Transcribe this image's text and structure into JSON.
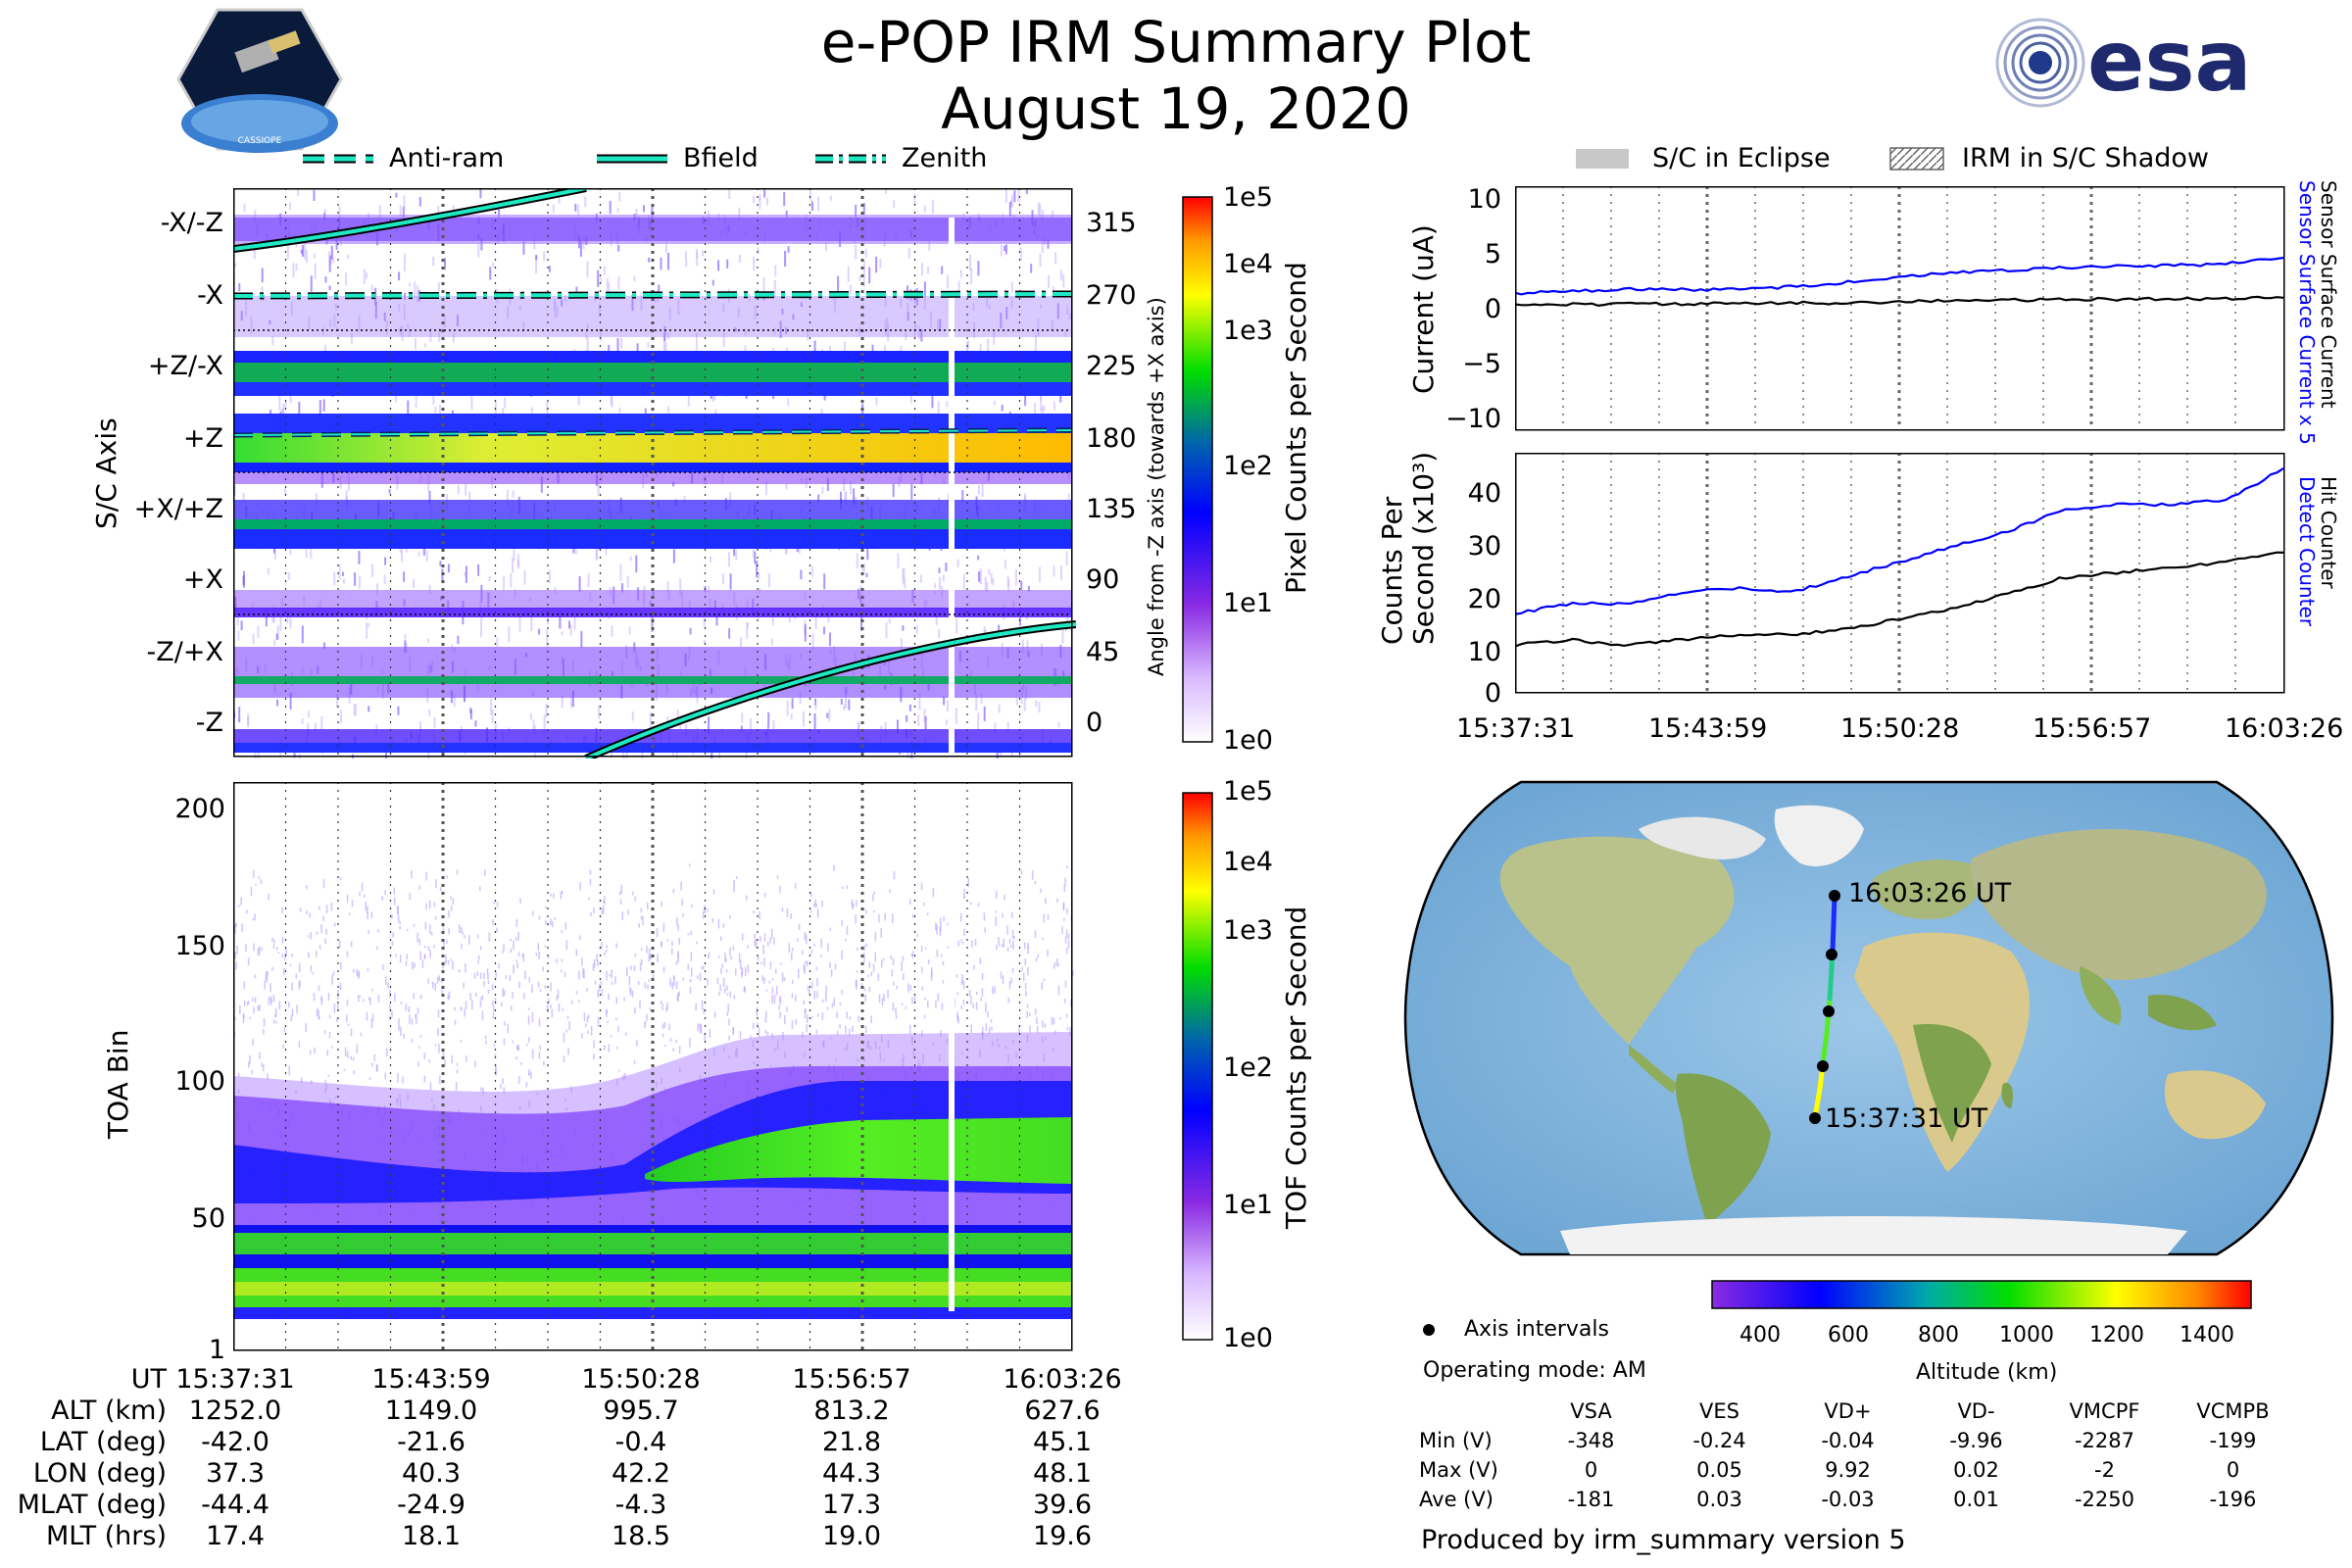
{
  "header": {
    "title": "e-POP IRM Summary Plot",
    "subtitle": "August 19, 2020",
    "esa_logo_text": "esa",
    "cassiope_logo_text": "CASSIOPE"
  },
  "legend_left": {
    "anti_ram": "Anti-ram",
    "bfield": "Bfield",
    "zenith": "Zenith"
  },
  "legend_right": {
    "eclipse": "S/C in Eclipse",
    "shadow": "IRM in S/C Shadow"
  },
  "colors": {
    "teal": "#1de9c4",
    "blue": "#0000ff",
    "grid": "#888888"
  },
  "chart_data": [
    {
      "type": "heatmap",
      "name": "pixel-counts",
      "ylabel": "S/C Axis",
      "y2label": "Angle from -Z axis (towards +X axis)",
      "axis_labels": [
        "-X/-Z",
        "-X",
        "+Z/-X",
        "+Z",
        "+X/+Z",
        "+X",
        "-Z/+X",
        "-Z"
      ],
      "angle_ticks": [
        "315",
        "270",
        "225",
        "180",
        "135",
        "90",
        "45",
        "0"
      ],
      "colorbar_label": "Pixel Counts per Second",
      "colorbar_ticks": [
        "1e5",
        "1e4",
        "1e3",
        "1e2",
        "1e1",
        "1e0"
      ]
    },
    {
      "type": "heatmap",
      "name": "toa-counts",
      "ylabel": "TOA Bin",
      "yticks": [
        "200",
        "150",
        "100",
        "50",
        "1"
      ],
      "ylim": [
        1,
        210
      ],
      "colorbar_label": "TOF Counts per Second",
      "colorbar_ticks": [
        "1e5",
        "1e4",
        "1e3",
        "1e2",
        "1e1",
        "1e0"
      ]
    },
    {
      "type": "line",
      "name": "current",
      "ylabel": "Current (uA)",
      "yticks": [
        "10",
        "5",
        "0",
        "−5",
        "−10"
      ],
      "ylim": [
        -11,
        11
      ],
      "right_label_blue": "Sensor Surface Current x 5",
      "right_label_black": "Sensor Surface Current",
      "series": [
        {
          "name": "Sensor Surface Current x 5",
          "color": "#0000ff",
          "values": [
            1.3,
            1.5,
            1.7,
            1.6,
            1.8,
            2.2,
            2.8,
            3.2,
            3.5,
            3.7,
            3.8,
            3.9,
            4.6
          ]
        },
        {
          "name": "Sensor Surface Current",
          "color": "#000000",
          "values": [
            0.25,
            0.3,
            0.35,
            0.35,
            0.4,
            0.45,
            0.55,
            0.65,
            0.7,
            0.75,
            0.8,
            0.82,
            0.95
          ]
        }
      ]
    },
    {
      "type": "line",
      "name": "counts",
      "ylabel_line1": "Counts Per",
      "ylabel_line2": "Second (x10³)",
      "yticks": [
        "40",
        "30",
        "20",
        "10",
        "0"
      ],
      "ylim": [
        0,
        46
      ],
      "right_label_blue": "Detect Counter",
      "right_label_black": "Hit Counter",
      "series": [
        {
          "name": "Detect Counter",
          "color": "#0000ff",
          "values": [
            15,
            17,
            17,
            19,
            20,
            19,
            22,
            25,
            28,
            31,
            35,
            36,
            36,
            37,
            43
          ]
        },
        {
          "name": "Hit Counter",
          "color": "#000000",
          "values": [
            9,
            10,
            9,
            10,
            11,
            11,
            12,
            14,
            16,
            19,
            22,
            23,
            24,
            25,
            27
          ]
        }
      ],
      "x_labels": [
        "15:37:31",
        "15:43:59",
        "15:50:28",
        "15:56:57",
        "16:03:26"
      ]
    }
  ],
  "ephemeris": {
    "rows": [
      {
        "label": "UT",
        "values": [
          "15:37:31",
          "15:43:59",
          "15:50:28",
          "15:56:57",
          "16:03:26"
        ]
      },
      {
        "label": "ALT (km)",
        "values": [
          "1252.0",
          "1149.0",
          "995.7",
          "813.2",
          "627.6"
        ]
      },
      {
        "label": "LAT (deg)",
        "values": [
          "-42.0",
          "-21.6",
          "-0.4",
          "21.8",
          "45.1"
        ]
      },
      {
        "label": "LON (deg)",
        "values": [
          "37.3",
          "40.3",
          "42.2",
          "44.3",
          "48.1"
        ]
      },
      {
        "label": "MLAT (deg)",
        "values": [
          "-44.4",
          "-24.9",
          "-4.3",
          "17.3",
          "39.6"
        ]
      },
      {
        "label": "MLT (hrs)",
        "values": [
          "17.4",
          "18.1",
          "18.5",
          "19.0",
          "19.6"
        ]
      }
    ]
  },
  "map": {
    "start_label": "15:37:31 UT",
    "end_label": "16:03:26 UT",
    "altitude_label": "Altitude (km)",
    "altitude_ticks": [
      "400",
      "600",
      "800",
      "1000",
      "1200",
      "1400"
    ],
    "axis_intervals_label": "Axis intervals",
    "operating_mode": "Operating mode: AM"
  },
  "voltages": {
    "columns": [
      "VSA",
      "VES",
      "VD+",
      "VD-",
      "VMCPF",
      "VCMPB"
    ],
    "rows": [
      {
        "label": "Min (V)",
        "values": [
          "-348",
          "-0.24",
          "-0.04",
          "-9.96",
          "-2287",
          "-199"
        ]
      },
      {
        "label": "Max (V)",
        "values": [
          "0",
          "0.05",
          "9.92",
          "0.02",
          "-2",
          "0"
        ]
      },
      {
        "label": "Ave (V)",
        "values": [
          "-181",
          "0.03",
          "-0.03",
          "0.01",
          "-2250",
          "-196"
        ]
      }
    ]
  },
  "footer": "Produced by irm_summary version 5"
}
